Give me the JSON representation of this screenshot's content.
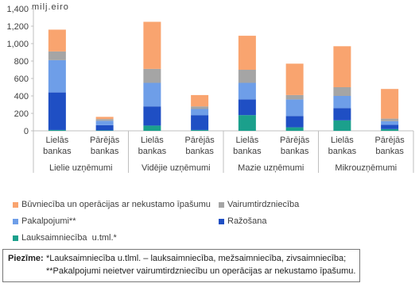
{
  "chart_data": {
    "type": "stacked_bar",
    "y_label": "milj.eiro",
    "categories": [
      "Lielās bankas",
      "Pārējās bankas",
      "Lielās bankas",
      "Pārējās bankas",
      "Lielās bankas",
      "Pārējās bankas",
      "Lielās bankas",
      "Pārējās bankas"
    ],
    "groups": [
      "Lielie uzņēmumi",
      "Vidējie uzņēmumi",
      "Mazie uzņēmumi",
      "Mikrouzņēmumi"
    ],
    "series": [
      {
        "name": "Būvniecība un operācijas ar nekustamo īpašumu",
        "color": "#f9a46f",
        "values": [
          250,
          25,
          540,
          130,
          390,
          360,
          470,
          340
        ]
      },
      {
        "name": "Vairumtirdzniecība",
        "color": "#a5a5a5",
        "values": [
          100,
          20,
          160,
          30,
          150,
          50,
          100,
          30
        ]
      },
      {
        "name": "Pakalpojumi**",
        "color": "#6e9ee8",
        "values": [
          370,
          50,
          270,
          70,
          190,
          190,
          140,
          40
        ]
      },
      {
        "name": "Ražošana",
        "color": "#1f4fc4",
        "values": [
          430,
          60,
          220,
          170,
          180,
          130,
          140,
          50
        ]
      },
      {
        "name": "Lauksaimniecība  u.tml.*",
        "color": "#1ba08c",
        "values": [
          10,
          5,
          60,
          10,
          180,
          40,
          120,
          20
        ]
      }
    ],
    "ylim": [
      0,
      1400
    ],
    "yticks": [
      0,
      200,
      400,
      600,
      800,
      {
        "value": 1000,
        "label": "1,000"
      },
      {
        "value": 1200,
        "label": "1,200"
      },
      {
        "value": 1400,
        "label": "1,400"
      }
    ],
    "grid": false,
    "note_label": "Piezīme:",
    "notes": [
      "*Lauksaimniecība u.tlml. – lauksaimniecība, mežsaimniecība, zivsaimniecība;",
      "**Pakalpojumi neietver vairumtirdzniecību un operācijas ar nekustamo īpašumu."
    ]
  }
}
